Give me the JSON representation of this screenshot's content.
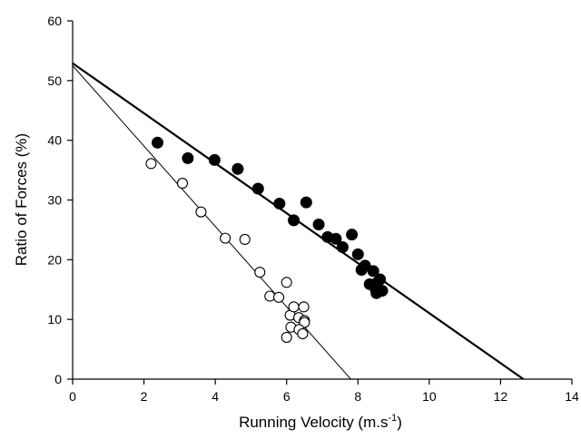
{
  "chart_data": {
    "type": "scatter",
    "xlabel": "Running Velocity (m.s",
    "xlabel_superscript": "-1",
    "xlabel_suffix": ")",
    "ylabel": "Ratio of Forces (%)",
    "xlim": [
      0,
      14
    ],
    "ylim": [
      0,
      60
    ],
    "xticks": [
      0,
      2,
      4,
      6,
      8,
      10,
      12,
      14
    ],
    "yticks": [
      0,
      10,
      20,
      30,
      40,
      50,
      60
    ],
    "grid": false,
    "series": [
      {
        "marker": "filled-circle",
        "color": "#000000",
        "points": [
          [
            2.38,
            39.6
          ],
          [
            3.23,
            37.0
          ],
          [
            3.98,
            36.7
          ],
          [
            4.63,
            35.2
          ],
          [
            5.2,
            31.9
          ],
          [
            5.8,
            29.4
          ],
          [
            6.55,
            29.6
          ],
          [
            6.2,
            26.6
          ],
          [
            6.9,
            25.9
          ],
          [
            7.15,
            23.8
          ],
          [
            7.38,
            23.5
          ],
          [
            7.57,
            22.1
          ],
          [
            7.83,
            24.2
          ],
          [
            8.0,
            20.9
          ],
          [
            8.2,
            19.0
          ],
          [
            8.1,
            18.3
          ],
          [
            8.43,
            18.1
          ],
          [
            8.33,
            15.9
          ],
          [
            8.55,
            16.2
          ],
          [
            8.62,
            16.7
          ],
          [
            8.5,
            15.0
          ],
          [
            8.68,
            14.8
          ],
          [
            8.52,
            14.4
          ]
        ],
        "fit_line": {
          "x": [
            0,
            12.64
          ],
          "y": [
            52.9,
            0
          ]
        }
      },
      {
        "marker": "open-circle",
        "color": "#000000",
        "points": [
          [
            2.2,
            36.1
          ],
          [
            3.08,
            32.8
          ],
          [
            3.6,
            28.0
          ],
          [
            4.28,
            23.6
          ],
          [
            4.83,
            23.4
          ],
          [
            5.25,
            17.9
          ],
          [
            5.53,
            13.9
          ],
          [
            5.78,
            13.7
          ],
          [
            6.0,
            16.2
          ],
          [
            6.1,
            10.7
          ],
          [
            6.2,
            12.1
          ],
          [
            6.48,
            12.1
          ],
          [
            6.34,
            10.3
          ],
          [
            6.5,
            9.8
          ],
          [
            6.12,
            8.7
          ],
          [
            6.5,
            9.5
          ],
          [
            6.35,
            8.3
          ],
          [
            6.45,
            7.6
          ],
          [
            6.0,
            7.0
          ]
        ],
        "fit_line": {
          "x": [
            0,
            7.8
          ],
          "y": [
            52.5,
            0
          ]
        }
      }
    ]
  }
}
